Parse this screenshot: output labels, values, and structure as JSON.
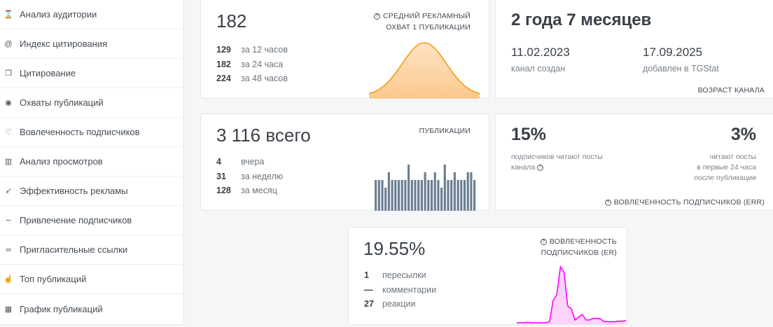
{
  "sidebar": {
    "items": [
      {
        "label": "Анализ аудитории",
        "icon": "hourglass-icon"
      },
      {
        "label": "Индекс цитирования",
        "icon": "at-icon"
      },
      {
        "label": "Цитирование",
        "icon": "quotes-icon"
      },
      {
        "label": "Охваты публикаций",
        "icon": "eye-icon"
      },
      {
        "label": "Вовлеченность подписчиков",
        "icon": "heart-icon"
      },
      {
        "label": "Анализ просмотров",
        "icon": "bar-chart-icon"
      },
      {
        "label": "Эффективность рекламы",
        "icon": "rocket-icon"
      },
      {
        "label": "Привлечение подписчиков",
        "icon": "trend-icon"
      },
      {
        "label": "Пригласительные ссылки",
        "icon": "link-icon"
      },
      {
        "label": "Топ публикаций",
        "icon": "thumbs-up-icon"
      },
      {
        "label": "График публикаций",
        "icon": "calendar-icon"
      }
    ]
  },
  "reach": {
    "value": "182",
    "title1": "СРЕДНИЙ РЕКЛАМНЫЙ",
    "title2": "ОХВАТ 1 ПУБЛИКАЦИИ",
    "rows": [
      {
        "n": "129",
        "t": "за 12 часов"
      },
      {
        "n": "182",
        "t": "за 24 часа"
      },
      {
        "n": "224",
        "t": "за 48 часов"
      }
    ],
    "color": "#f39c12"
  },
  "age": {
    "value": "2 года 7 месяцев",
    "created": "11.02.2023",
    "created_label": "канал создан",
    "added": "17.09.2025",
    "added_label": "добавлен в TGStat",
    "title": "ВОЗРАСТ КАНАЛА"
  },
  "posts": {
    "value": "3 116 всего",
    "title": "ПУБЛИКАЦИИ",
    "rows": [
      {
        "n": "4",
        "t": "вчера"
      },
      {
        "n": "31",
        "t": "за неделю"
      },
      {
        "n": "128",
        "t": "за месяц"
      }
    ],
    "bars": [
      4,
      4,
      4,
      3,
      5,
      4,
      4,
      4,
      4,
      4,
      6,
      4,
      4,
      4,
      4,
      5,
      4,
      4,
      5,
      4,
      3,
      6,
      4,
      4,
      5,
      4,
      4,
      4,
      5,
      5,
      4
    ],
    "color": "#6c7f93"
  },
  "err": {
    "v1": "15%",
    "d1a": "подписчиков читают посты",
    "d1b": "канала",
    "v2": "3%",
    "d2a": "читают посты",
    "d2b": "в первые 24 часа",
    "d2c": "после публикации",
    "title": "ВОВЛЕЧЕННОСТЬ ПОДПИСЧИКОВ (ERR)"
  },
  "er": {
    "value": "19.55%",
    "title1": "ВОВЛЕЧЕННОСТЬ",
    "title2": "ПОДПИСЧИКОВ (ER)",
    "rows": [
      {
        "n": "1",
        "t": "пересылки"
      },
      {
        "n": "—",
        "t": "комментарии"
      },
      {
        "n": "27",
        "t": "реакции"
      }
    ],
    "series": [
      0,
      0,
      0,
      0.01,
      0,
      0,
      0,
      0,
      0,
      0.02,
      0.4,
      0.5,
      1,
      0.9,
      0.3,
      0.25,
      0.05,
      0.1,
      0.15,
      0.05,
      0.05,
      0.08,
      0.08,
      0.07,
      0.02,
      0.02,
      0.02,
      0.02,
      0.03,
      0.03,
      0.04
    ],
    "color": "#ff00ff"
  }
}
